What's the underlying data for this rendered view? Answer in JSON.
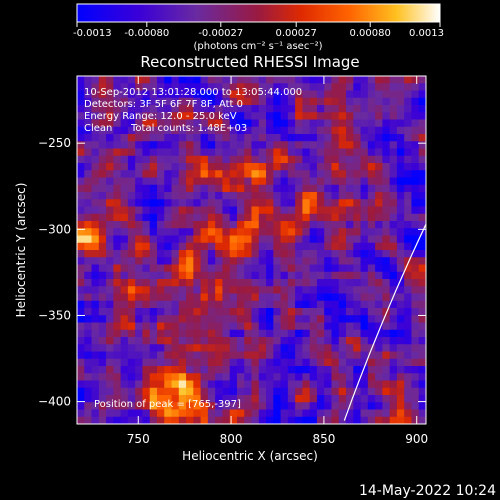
{
  "chart_data": {
    "type": "heatmap",
    "title": "Reconstructed RHESSI Image",
    "xlabel": "Heliocentric X (arcsec)",
    "ylabel": "Heliocentric Y (arcsec)",
    "xlim": [
      717,
      905
    ],
    "ylim": [
      -413,
      -211
    ],
    "x_ticks": [
      750,
      800,
      850,
      900
    ],
    "y_ticks": [
      -250,
      -300,
      -350,
      -400
    ],
    "colorbar": {
      "ticks": [
        -0.0013,
        -0.0008,
        -0.00027,
        0.00027,
        0.0008,
        0.0013
      ],
      "tick_labels": [
        "-0.0013",
        "-0.00080",
        "-0.00027",
        "0.00027",
        "0.00080",
        "0.0013"
      ],
      "label": "(photons cm⁻² s⁻¹ asec⁻²)",
      "range": [
        -0.0013,
        0.0013
      ],
      "colormap": "blue-purple-red-yellow-white"
    },
    "annotations": {
      "time_range": "10-Sep-2012 13:01:28.000 to 13:05:44.000",
      "detectors": "Detectors: 3F 5F 6F 7F 8F, Att 0",
      "energy_range": "Energy Range: 12.0 - 25.0 keV",
      "clean_label": "Clean",
      "total_counts": "Total counts: 1.48E+03",
      "peak_position": "Position of peak = [765,-397]"
    },
    "limb_curve": {
      "x": [
        861,
        905
      ],
      "y": [
        -411,
        -297
      ]
    },
    "image_description_value_range": [
      -0.0013,
      0.0013
    ]
  },
  "footer": {
    "timestamp": "14-May-2022 10:24"
  }
}
